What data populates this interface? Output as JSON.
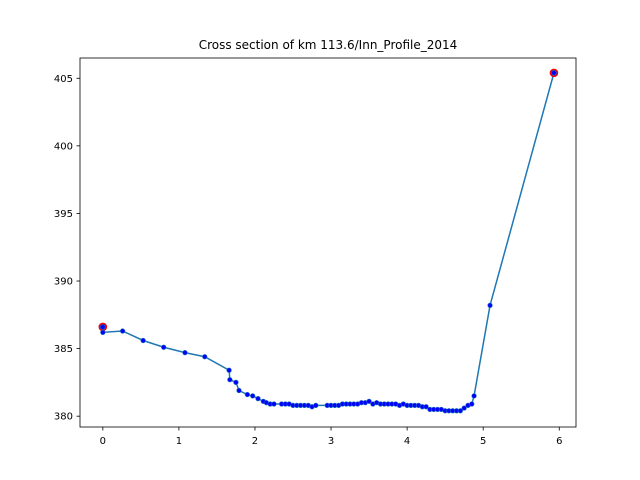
{
  "chart_data": {
    "type": "line",
    "title": "Cross section of km 113.6/Inn_Profile_2014",
    "xlabel": "",
    "ylabel": "",
    "xlim": [
      -0.3,
      6.22
    ],
    "ylim": [
      379.2,
      406.5
    ],
    "xticks": [
      0,
      1,
      2,
      3,
      4,
      5,
      6
    ],
    "yticks": [
      380,
      385,
      390,
      395,
      400,
      405
    ],
    "grid": false,
    "line_color": "#1f77b4",
    "point_color": "#0000ff",
    "endpoint_edge_color": "#ff0000",
    "series": [
      {
        "x": [
          0.0,
          0.0,
          0.26,
          0.53,
          0.8,
          1.08,
          1.34,
          1.66,
          1.67,
          1.75,
          1.79,
          1.9,
          1.97,
          2.04,
          2.11,
          2.15,
          2.2,
          2.25,
          2.35,
          2.4,
          2.45,
          2.5,
          2.55,
          2.6,
          2.65,
          2.7,
          2.75,
          2.8,
          2.95,
          3.0,
          3.05,
          3.1,
          3.15,
          3.2,
          3.25,
          3.3,
          3.35,
          3.4,
          3.45,
          3.5,
          3.55,
          3.6,
          3.65,
          3.7,
          3.75,
          3.8,
          3.85,
          3.9,
          3.95,
          4.0,
          4.05,
          4.1,
          4.15,
          4.2,
          4.25,
          4.3,
          4.35,
          4.4,
          4.45,
          4.5,
          4.55,
          4.6,
          4.65,
          4.7,
          4.75,
          4.8,
          4.85,
          4.88,
          5.09,
          5.93,
          5.93
        ],
        "y": [
          386.6,
          386.2,
          386.3,
          385.6,
          385.1,
          384.7,
          384.4,
          383.4,
          382.7,
          382.5,
          381.9,
          381.6,
          381.5,
          381.3,
          381.1,
          381.0,
          380.9,
          380.9,
          380.9,
          380.9,
          380.9,
          380.8,
          380.8,
          380.8,
          380.8,
          380.8,
          380.7,
          380.8,
          380.8,
          380.8,
          380.8,
          380.8,
          380.9,
          380.9,
          380.9,
          380.9,
          380.9,
          381.0,
          381.0,
          381.1,
          380.9,
          381.0,
          380.9,
          380.9,
          380.9,
          380.9,
          380.9,
          380.8,
          380.9,
          380.8,
          380.8,
          380.8,
          380.8,
          380.7,
          380.7,
          380.5,
          380.5,
          380.5,
          380.5,
          380.4,
          380.4,
          380.4,
          380.4,
          380.4,
          380.6,
          380.8,
          380.9,
          381.5,
          388.2,
          405.4,
          405.4
        ]
      }
    ],
    "highlighted_points": [
      {
        "x": 0.0,
        "y": 386.6
      },
      {
        "x": 5.93,
        "y": 405.4
      }
    ]
  }
}
